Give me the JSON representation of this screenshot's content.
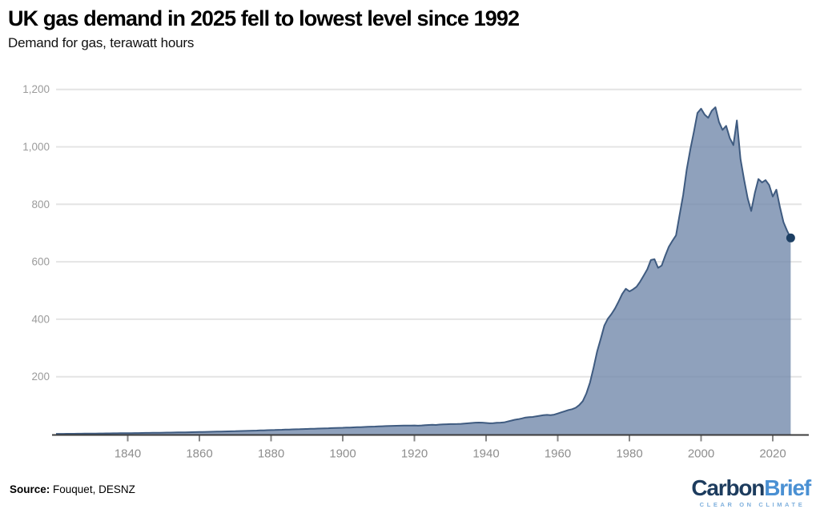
{
  "footer": {
    "source_label": "Source:",
    "source_value": "Fouquet, DESNZ"
  },
  "logo": {
    "part1": "Carbon",
    "part2": "Brief",
    "tagline": "CLEAR ON CLIMATE"
  },
  "colors": {
    "area_fill": "rgba(115,137,171,0.8)",
    "line": "#3f5b80",
    "end_dot": "#1d3f63",
    "grid": "#e4e4e4",
    "axis_line": "#3c3c3c",
    "tick_mark": "#888888",
    "x_tick_label": "#8e8e8e",
    "y_tick_label": "#9b9b9b",
    "logo_dark_blue": "#1d3c5e",
    "logo_blue": "#4a90d3",
    "logo_light_blue": "#7fb0dd"
  },
  "chart_data": {
    "type": "area",
    "title": "UK gas demand in 2025 fell to lowest level since 1992",
    "subtitle": "Demand for gas, terawatt hours",
    "ylabel": "terawatt hours",
    "xlabel": "",
    "grid": true,
    "legend": false,
    "x_start_year": 1820,
    "x_end_year": 2025,
    "xlim": [
      1820,
      2027
    ],
    "ylim": [
      0,
      1250
    ],
    "x_ticks": [
      1840,
      1860,
      1880,
      1900,
      1920,
      1940,
      1960,
      1980,
      2000,
      2020
    ],
    "y_ticks": [
      200,
      400,
      600,
      800,
      1000,
      1200
    ],
    "y_tick_labels": [
      "200",
      "400",
      "600",
      "800",
      "1,000",
      "1,200"
    ],
    "end_marker": {
      "year": 2025,
      "value": 683
    },
    "values": [
      1.0,
      1.1,
      1.2,
      1.3,
      1.4,
      1.5,
      1.6,
      1.8,
      1.9,
      2.0,
      2.1,
      2.2,
      2.4,
      2.5,
      2.7,
      2.8,
      3.0,
      3.1,
      3.3,
      3.4,
      3.6,
      3.7,
      3.9,
      4.0,
      4.2,
      4.4,
      4.5,
      4.7,
      4.9,
      5.1,
      5.3,
      5.5,
      5.7,
      5.9,
      6.1,
      6.3,
      6.5,
      6.8,
      7.0,
      7.2,
      7.5,
      7.8,
      8.0,
      8.3,
      8.6,
      8.9,
      9.2,
      9.5,
      9.8,
      10.1,
      10.4,
      10.8,
      11.1,
      11.5,
      11.8,
      12.2,
      12.6,
      13.0,
      13.4,
      13.8,
      14.2,
      14.6,
      15.0,
      15.4,
      15.8,
      16.2,
      16.6,
      17.0,
      17.4,
      17.8,
      18.2,
      18.6,
      19.0,
      19.4,
      19.8,
      20.2,
      20.7,
      21.1,
      21.5,
      21.9,
      22.3,
      22.8,
      23.2,
      23.7,
      24.1,
      24.6,
      25.1,
      25.6,
      26.1,
      26.6,
      27.1,
      27.6,
      28.1,
      28.7,
      28.9,
      29.2,
      29.5,
      29.8,
      30.1,
      30.0,
      30.5,
      29.5,
      30.5,
      31.5,
      32.0,
      32.5,
      32.0,
      33.5,
      34.0,
      34.5,
      35.0,
      35.0,
      35.5,
      36.0,
      37.0,
      38.0,
      39.0,
      40.0,
      40.5,
      40.0,
      39.0,
      38.0,
      38.5,
      39.5,
      40.0,
      41.0,
      44.0,
      47.0,
      50.0,
      52.0,
      55,
      58,
      59,
      60,
      62,
      64,
      66,
      67,
      66,
      68,
      72,
      76,
      80,
      84,
      87,
      92,
      101,
      115,
      142,
      180,
      232,
      288,
      332,
      378,
      402,
      418,
      438,
      462,
      488,
      506,
      497,
      504,
      513,
      531,
      552,
      574,
      606,
      609,
      579,
      587,
      621,
      652,
      673,
      692,
      762,
      832,
      922,
      992,
      1052,
      1118,
      1133,
      1112,
      1101,
      1126,
      1138,
      1086,
      1059,
      1073,
      1031,
      1006,
      1092,
      958,
      886,
      821,
      777,
      839,
      888,
      876,
      884,
      867,
      827,
      851,
      791,
      738,
      708,
      683
    ]
  }
}
